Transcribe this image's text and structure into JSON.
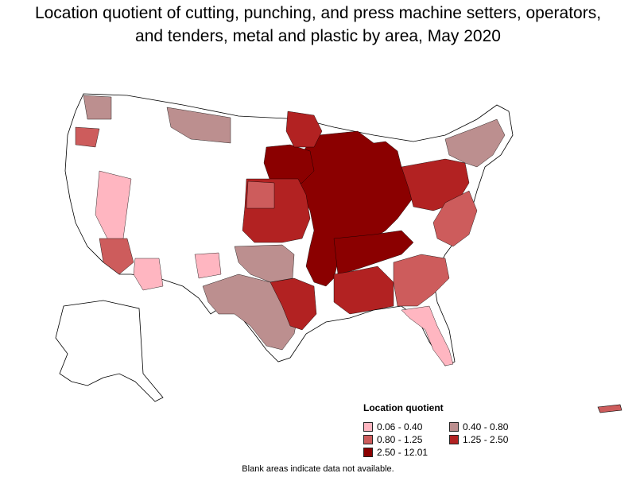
{
  "title": {
    "line1": "Location quotient of cutting, punching, and press machine setters, operators,",
    "line2": "and tenders, metal and plastic by area, May 2020"
  },
  "legend": {
    "title": "Location quotient",
    "items": [
      {
        "label": "0.06 - 0.40",
        "color": "#ffb6c1"
      },
      {
        "label": "0.40 - 0.80",
        "color": "#bc8f8f"
      },
      {
        "label": "0.80 - 1.25",
        "color": "#cd5c5c"
      },
      {
        "label": "1.25 - 2.50",
        "color": "#b22222"
      },
      {
        "label": "2.50 - 12.01",
        "color": "#8b0000"
      }
    ]
  },
  "footnote": "Blank areas indicate data not available.",
  "colors": {
    "outline": "#000000",
    "no_data": "#ffffff"
  }
}
